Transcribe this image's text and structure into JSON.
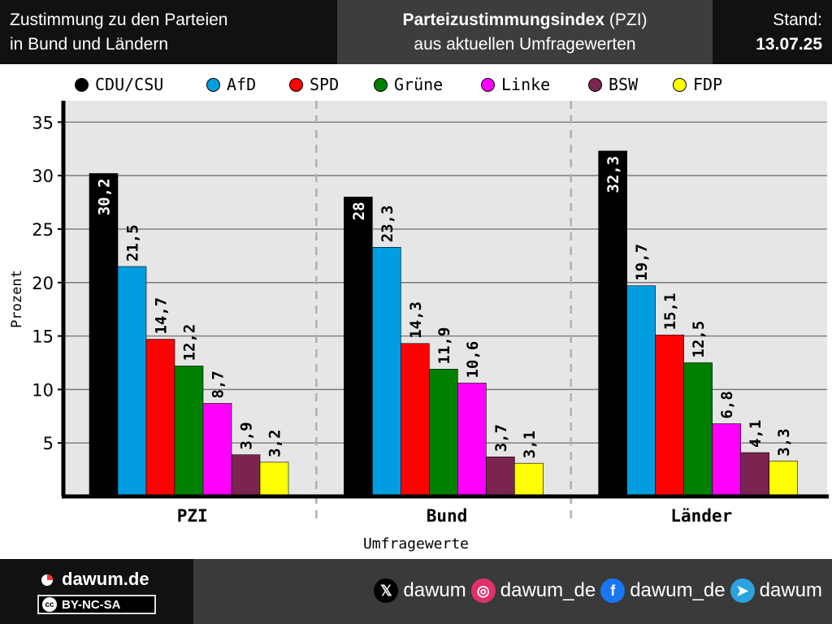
{
  "header": {
    "left": "Zustimmung zu den Parteien\nin Bund und Ländern",
    "mid_bold": "Parteizustimmungsindex",
    "mid_rest": " (PZI)",
    "mid_line2": "aus aktuellen Umfragewerten",
    "stand_label": "Stand:",
    "stand_date": "13.07.25"
  },
  "legend": [
    {
      "name": "CDU/CSU",
      "color": "#000000"
    },
    {
      "name": "AfD",
      "color": "#009ee0"
    },
    {
      "name": "SPD",
      "color": "#ff0000"
    },
    {
      "name": "Grüne",
      "color": "#008000"
    },
    {
      "name": "Linke",
      "color": "#ff00ff"
    },
    {
      "name": "BSW",
      "color": "#7b2450"
    },
    {
      "name": "FDP",
      "color": "#ffff00"
    }
  ],
  "chart_data": {
    "type": "bar",
    "categories": [
      "PZI",
      "Bund",
      "Länder"
    ],
    "series": [
      {
        "name": "CDU/CSU",
        "color": "#000000",
        "values": [
          30.2,
          28,
          32.3
        ],
        "labels": [
          "30,2",
          "28",
          "32,3"
        ]
      },
      {
        "name": "AfD",
        "color": "#009ee0",
        "values": [
          21.5,
          23.3,
          19.7
        ],
        "labels": [
          "21,5",
          "23,3",
          "19,7"
        ]
      },
      {
        "name": "SPD",
        "color": "#ff0000",
        "values": [
          14.7,
          14.3,
          15.1
        ],
        "labels": [
          "14,7",
          "14,3",
          "15,1"
        ]
      },
      {
        "name": "Grüne",
        "color": "#008000",
        "values": [
          12.2,
          11.9,
          12.5
        ],
        "labels": [
          "12,2",
          "11,9",
          "12,5"
        ]
      },
      {
        "name": "Linke",
        "color": "#ff00ff",
        "values": [
          8.7,
          10.6,
          6.8
        ],
        "labels": [
          "8,7",
          "10,6",
          "6,8"
        ]
      },
      {
        "name": "BSW",
        "color": "#7b2450",
        "values": [
          3.9,
          3.7,
          4.1
        ],
        "labels": [
          "3,9",
          "3,7",
          "4,1"
        ]
      },
      {
        "name": "FDP",
        "color": "#ffff00",
        "values": [
          3.2,
          3.1,
          3.3
        ],
        "labels": [
          "3,2",
          "3,1",
          "3,3"
        ]
      }
    ],
    "xlabel": "Umfragewerte",
    "ylabel": "Prozent",
    "yticks": [
      5,
      10,
      15,
      20,
      25,
      30,
      35
    ],
    "ylim": [
      0,
      37
    ],
    "grid": true,
    "legend_position": "top"
  },
  "footer": {
    "brand": "dawum.de",
    "license": "BY-NC-SA",
    "license_badge": "cc",
    "socials": [
      {
        "icon": "x-icon",
        "glyph": "𝕏",
        "color": "#000000",
        "handle": "dawum"
      },
      {
        "icon": "instagram-icon",
        "glyph": "◎",
        "color": "#e1306c",
        "handle": "dawum_de"
      },
      {
        "icon": "facebook-icon",
        "glyph": "f",
        "color": "#1877f2",
        "handle": "dawum_de"
      },
      {
        "icon": "telegram-icon",
        "glyph": "➤",
        "color": "#2aa3de",
        "handle": "dawum"
      }
    ]
  }
}
